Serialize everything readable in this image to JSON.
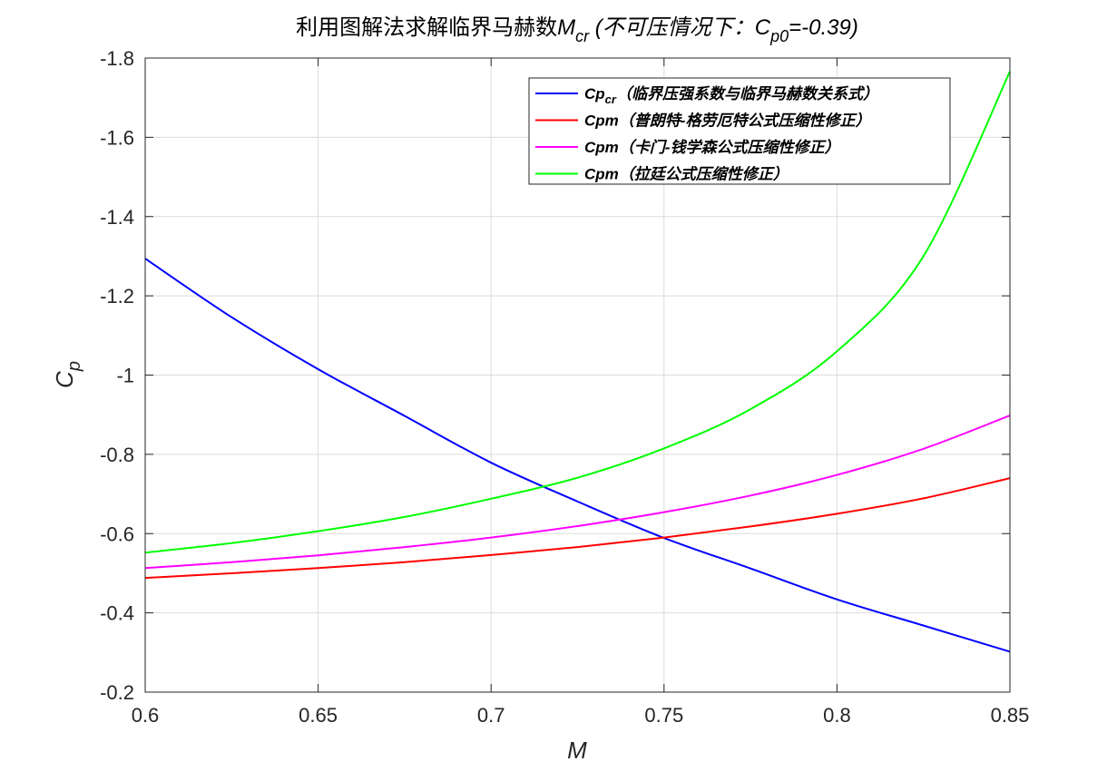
{
  "chart_data": {
    "type": "line",
    "title": {
      "prefix": "利用图解法求解临界马赫数",
      "var_main": "M",
      "var_sub": "cr",
      "suffix_1": " (不可压情况下：",
      "cp_main": "C",
      "cp_sub": "p0",
      "suffix_2": "=-0.39)"
    },
    "xlabel": "M",
    "ylabel": {
      "main": "C",
      "sub": "p"
    },
    "xlim": [
      0.6,
      0.85
    ],
    "ylim": [
      -0.2,
      -1.8
    ],
    "y_reversed": true,
    "x_ticks": [
      0.6,
      0.65,
      0.7,
      0.75,
      0.8,
      0.85
    ],
    "x_tick_labels": [
      "0.6",
      "0.65",
      "0.7",
      "0.75",
      "0.8",
      "0.85"
    ],
    "y_ticks": [
      -0.2,
      -0.4,
      -0.6,
      -0.8,
      -1.0,
      -1.2,
      -1.4,
      -1.6,
      -1.8
    ],
    "y_tick_labels": [
      "-0.2",
      "-0.4",
      "-0.6",
      "-0.8",
      "-1",
      "-1.2",
      "-1.4",
      "-1.6",
      "-1.8"
    ],
    "grid": true,
    "legend_position": "top-right",
    "series": [
      {
        "name": "Cpcr（临界压强系数与临界马赫数关系式）",
        "legend_main": "Cp",
        "legend_sub": "cr",
        "legend_desc": "（临界压强系数与临界马赫数关系式）",
        "color": "#0000ff",
        "x": [
          0.6,
          0.625,
          0.65,
          0.675,
          0.7,
          0.725,
          0.75,
          0.775,
          0.8,
          0.825,
          0.85
        ],
        "y": [
          -1.294,
          -1.146,
          -1.015,
          -0.897,
          -0.779,
          -0.681,
          -0.589,
          -0.512,
          -0.434,
          -0.368,
          -0.302
        ]
      },
      {
        "name": "Cpm（普朗特-格劳厄特公式压缩性修正）",
        "legend_main": "Cpm",
        "legend_sub": "",
        "legend_desc": "（普朗特-格劳厄特公式压缩性修正）",
        "color": "#ff0000",
        "x": [
          0.6,
          0.625,
          0.65,
          0.675,
          0.7,
          0.725,
          0.75,
          0.775,
          0.8,
          0.825,
          0.85
        ],
        "y": [
          -0.488,
          -0.5,
          -0.513,
          -0.528,
          -0.546,
          -0.566,
          -0.59,
          -0.618,
          -0.65,
          -0.689,
          -0.74
        ]
      },
      {
        "name": "Cpm（卡门-钱学森公式压缩性修正）",
        "legend_main": "Cpm",
        "legend_sub": "",
        "legend_desc": "（卡门-钱学森公式压缩性修正）",
        "color": "#ff00ff",
        "x": [
          0.6,
          0.625,
          0.65,
          0.675,
          0.7,
          0.725,
          0.75,
          0.775,
          0.8,
          0.825,
          0.85
        ],
        "y": [
          -0.513,
          -0.528,
          -0.545,
          -0.566,
          -0.59,
          -0.619,
          -0.654,
          -0.696,
          -0.748,
          -0.814,
          -0.898
        ]
      },
      {
        "name": "Cpm（拉廷公式压缩性修正）",
        "legend_main": "Cpm",
        "legend_sub": "",
        "legend_desc": "（拉廷公式压缩性修正）",
        "color": "#00ff00",
        "x": [
          0.6,
          0.625,
          0.65,
          0.675,
          0.7,
          0.725,
          0.75,
          0.775,
          0.8,
          0.825,
          0.85
        ],
        "y": [
          -0.552,
          -0.576,
          -0.606,
          -0.642,
          -0.688,
          -0.741,
          -0.815,
          -0.914,
          -1.06,
          -1.3,
          -1.766
        ]
      }
    ]
  }
}
